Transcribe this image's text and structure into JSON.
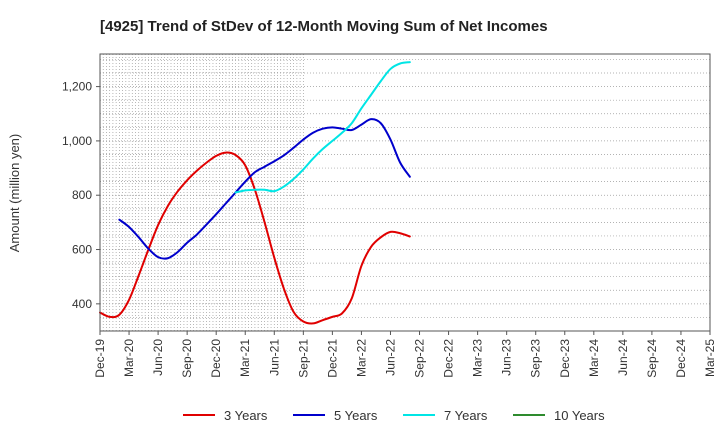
{
  "chart_data": {
    "type": "line",
    "title": "[4925]  Trend of StDev of 12-Month Moving Sum of Net Incomes",
    "xlabel": "",
    "ylabel": "Amount (million yen)",
    "ylim": [
      300,
      1320
    ],
    "yticks": [
      400,
      600,
      800,
      1000,
      1200
    ],
    "ytick_labels": [
      "400",
      "600",
      "800",
      "1,000",
      "1,200"
    ],
    "xticks": [
      "Dec-19",
      "Mar-20",
      "Jun-20",
      "Sep-20",
      "Dec-20",
      "Mar-21",
      "Jun-21",
      "Sep-21",
      "Dec-21",
      "Mar-22",
      "Jun-22",
      "Sep-22",
      "Dec-22",
      "Mar-23",
      "Jun-23",
      "Sep-23",
      "Dec-23",
      "Mar-24",
      "Jun-24",
      "Sep-24",
      "Dec-24",
      "Mar-25"
    ],
    "grid": true,
    "legend_position": "bottom",
    "series": [
      {
        "name": "3 Years",
        "color": "#e00000",
        "points": [
          [
            0,
            368
          ],
          [
            1,
            352
          ],
          [
            2,
            360
          ],
          [
            3,
            415
          ],
          [
            4,
            505
          ],
          [
            5,
            600
          ],
          [
            6,
            690
          ],
          [
            7,
            760
          ],
          [
            8,
            813
          ],
          [
            9,
            855
          ],
          [
            10,
            890
          ],
          [
            11,
            920
          ],
          [
            12,
            945
          ],
          [
            13,
            957
          ],
          [
            14,
            948
          ],
          [
            15,
            910
          ],
          [
            16,
            820
          ],
          [
            17,
            700
          ],
          [
            18,
            570
          ],
          [
            19,
            455
          ],
          [
            20,
            370
          ],
          [
            21,
            335
          ],
          [
            22,
            328
          ],
          [
            23,
            340
          ],
          [
            24,
            352
          ],
          [
            25,
            365
          ],
          [
            26,
            420
          ],
          [
            27,
            540
          ],
          [
            28,
            610
          ],
          [
            29,
            645
          ],
          [
            30,
            665
          ],
          [
            31,
            660
          ],
          [
            32,
            648
          ]
        ]
      },
      {
        "name": "5 Years",
        "color": "#0000cc",
        "points": [
          [
            2,
            710
          ],
          [
            3,
            683
          ],
          [
            4,
            645
          ],
          [
            5,
            603
          ],
          [
            6,
            572
          ],
          [
            7,
            568
          ],
          [
            8,
            590
          ],
          [
            9,
            625
          ],
          [
            10,
            655
          ],
          [
            11,
            692
          ],
          [
            12,
            730
          ],
          [
            13,
            770
          ],
          [
            14,
            810
          ],
          [
            15,
            850
          ],
          [
            16,
            885
          ],
          [
            17,
            905
          ],
          [
            18,
            925
          ],
          [
            19,
            947
          ],
          [
            20,
            975
          ],
          [
            21,
            1005
          ],
          [
            22,
            1030
          ],
          [
            23,
            1045
          ],
          [
            24,
            1050
          ],
          [
            25,
            1045
          ],
          [
            26,
            1040
          ],
          [
            27,
            1060
          ],
          [
            28,
            1080
          ],
          [
            29,
            1065
          ],
          [
            30,
            1005
          ],
          [
            31,
            920
          ],
          [
            32,
            868
          ]
        ]
      },
      {
        "name": "7 Years",
        "color": "#00e5e5",
        "points": [
          [
            14,
            810
          ],
          [
            15,
            818
          ],
          [
            16,
            820
          ],
          [
            17,
            820
          ],
          [
            18,
            815
          ],
          [
            19,
            832
          ],
          [
            20,
            860
          ],
          [
            21,
            895
          ],
          [
            22,
            935
          ],
          [
            23,
            970
          ],
          [
            24,
            1000
          ],
          [
            25,
            1030
          ],
          [
            26,
            1065
          ],
          [
            27,
            1120
          ],
          [
            28,
            1170
          ],
          [
            29,
            1220
          ],
          [
            30,
            1265
          ],
          [
            31,
            1285
          ],
          [
            32,
            1290
          ]
        ]
      },
      {
        "name": "10 Years",
        "color": "#2e8b2e",
        "points": []
      }
    ]
  }
}
